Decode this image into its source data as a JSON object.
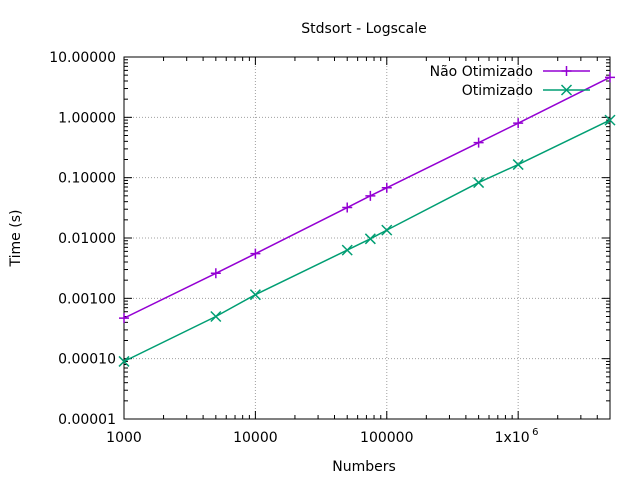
{
  "chart_data": {
    "type": "line",
    "title": "Stdsort - Logscale",
    "xlabel": "Numbers",
    "ylabel": "Time (s)",
    "x_scale": "log",
    "y_scale": "log",
    "xlim": [
      1000,
      5000000
    ],
    "ylim": [
      1e-05,
      10
    ],
    "grid": true,
    "legend_position": "top-right",
    "x_ticks": [
      {
        "value": 1000,
        "label": "1000"
      },
      {
        "value": 10000,
        "label": "10000"
      },
      {
        "value": 100000,
        "label": "100000"
      },
      {
        "value": 1000000,
        "label": "1x10",
        "exponent": "6"
      }
    ],
    "y_ticks": [
      {
        "value": 1e-05,
        "label": "0.00001"
      },
      {
        "value": 0.0001,
        "label": "0.00010"
      },
      {
        "value": 0.001,
        "label": "0.00100"
      },
      {
        "value": 0.01,
        "label": "0.01000"
      },
      {
        "value": 0.1,
        "label": "0.10000"
      },
      {
        "value": 1,
        "label": "1.00000"
      },
      {
        "value": 10,
        "label": "10.00000"
      }
    ],
    "series": [
      {
        "name": "Não Otimizado",
        "color": "#9400d3",
        "marker": "plus",
        "x": [
          1000,
          5000,
          10000,
          50000,
          75000,
          100000,
          500000,
          1000000,
          5000000
        ],
        "values": [
          0.00047,
          0.0026,
          0.0055,
          0.032,
          0.05,
          0.068,
          0.38,
          0.8,
          4.6
        ]
      },
      {
        "name": "Otimizado",
        "color": "#009e73",
        "marker": "cross",
        "x": [
          1000,
          5000,
          10000,
          50000,
          75000,
          100000,
          500000,
          1000000,
          5000000
        ],
        "values": [
          9e-05,
          0.0005,
          0.00115,
          0.0063,
          0.0097,
          0.0135,
          0.083,
          0.165,
          0.9
        ]
      }
    ]
  }
}
